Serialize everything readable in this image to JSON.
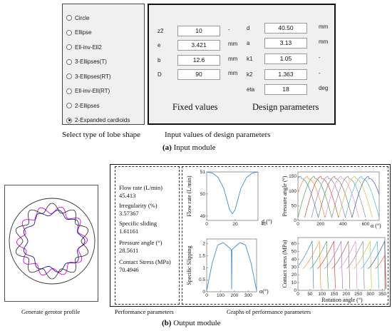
{
  "input_module": {
    "lobe_shapes": [
      {
        "label": "Circle",
        "selected": false
      },
      {
        "label": "Ellipse",
        "selected": false
      },
      {
        "label": "Ell-inv-Ell2",
        "selected": false
      },
      {
        "label": "3-Ellipses(T)",
        "selected": false
      },
      {
        "label": "3-Ellipses(RT)",
        "selected": false
      },
      {
        "label": "Ell-inv-Ell(RT)",
        "selected": false
      },
      {
        "label": "2-Ellipses",
        "selected": false
      },
      {
        "label": "2-Expanded cardioids",
        "selected": true
      }
    ],
    "fixed_values": [
      {
        "label": "z2",
        "value": "10",
        "unit": "-"
      },
      {
        "label": "e",
        "value": "3.421",
        "unit": "mm"
      },
      {
        "label": "b",
        "value": "12.6",
        "unit": "mm"
      },
      {
        "label": "D",
        "value": "90",
        "unit": "mm"
      }
    ],
    "design_parameters": [
      {
        "label": "d",
        "value": "40.50",
        "unit": "mm"
      },
      {
        "label": "a",
        "value": "3.13",
        "unit": "mm"
      },
      {
        "label": "k1",
        "value": "1.05",
        "unit": "-"
      },
      {
        "label": "k2",
        "value": "1.363",
        "unit": "-"
      },
      {
        "label": "eta",
        "value": "18",
        "unit": "deg"
      }
    ],
    "fixed_values_title": "Fixed values",
    "design_parameters_title": "Design parameters",
    "caption_left": "Select type of lobe shape",
    "caption_right": "Input values of design parameters",
    "module_caption_letter": "(a)",
    "module_caption_text": " Input module"
  },
  "output_module": {
    "performance": [
      {
        "label": "Flow rate (L/min)",
        "value": "45.413"
      },
      {
        "label": "Irregularity (%)",
        "value": "3.57367"
      },
      {
        "label": "Specific sliding",
        "value": "1.61161"
      },
      {
        "label": "Pressure angle (°)",
        "value": "28.5611"
      },
      {
        "label": "Contact Stress (MPa)",
        "value": "70.4946"
      }
    ],
    "caption_gerotor": "Generate gerotor profile",
    "caption_performance": "Performance parameters",
    "caption_graphs": "Graphs of performance parameters",
    "module_caption_letter": "(b)",
    "module_caption_text": " Output module",
    "colors": {
      "rotor_inner": "#1a1aa0",
      "rotor_outer": "#e000e0",
      "housing": "#333333"
    }
  },
  "chart_data": [
    {
      "type": "line",
      "ylabel": "Flow rate (L/min)",
      "xlabel": "α (°)",
      "xticks": [
        0,
        20,
        40
      ],
      "yticks": [
        49,
        50,
        51
      ],
      "xlim": [
        0,
        36
      ],
      "ylim": [
        48.8,
        51
      ],
      "series": [
        {
          "x": [
            0,
            4,
            8,
            12,
            16,
            18,
            20,
            24,
            28,
            32,
            36
          ],
          "y": [
            51,
            50.95,
            50.75,
            50.25,
            49.3,
            49.1,
            49.3,
            50.25,
            50.75,
            50.95,
            51
          ]
        }
      ]
    },
    {
      "type": "line",
      "ylabel": "Pressure angle (°)",
      "xlabel": "α (°)",
      "xticks": [
        0,
        200,
        400,
        600
      ],
      "yticks": [
        0,
        50,
        100,
        150
      ],
      "xlim": [
        0,
        720
      ],
      "ylim": [
        0,
        165
      ],
      "series_count": 11
    },
    {
      "type": "line",
      "ylabel": "Specific Slipping",
      "xlabel": "α(°)",
      "xticks": [
        0,
        100,
        200,
        300
      ],
      "yticks": [
        0,
        0.5,
        1,
        1.5,
        2
      ],
      "xlim": [
        0,
        360
      ],
      "ylim": [
        0,
        2.2
      ],
      "series": [
        {
          "x": [
            0,
            40,
            80,
            120,
            160,
            178,
            180,
            182,
            200,
            240,
            280,
            320,
            360
          ],
          "y": [
            0.05,
            1.2,
            1.95,
            2.05,
            1.85,
            1.75,
            0.1,
            1.75,
            1.85,
            2.05,
            1.95,
            1.2,
            0.05
          ]
        }
      ]
    },
    {
      "type": "line",
      "ylabel": "Contact stress (MPa)",
      "xlabel": "Rotation angle (°)",
      "xticks": [
        0,
        50,
        100,
        150,
        200,
        250,
        300,
        350
      ],
      "yticks": [
        0,
        10,
        20,
        30,
        40,
        50,
        60
      ],
      "xlim": [
        0,
        360
      ],
      "ylim": [
        0,
        68
      ],
      "series_count": 12
    }
  ]
}
